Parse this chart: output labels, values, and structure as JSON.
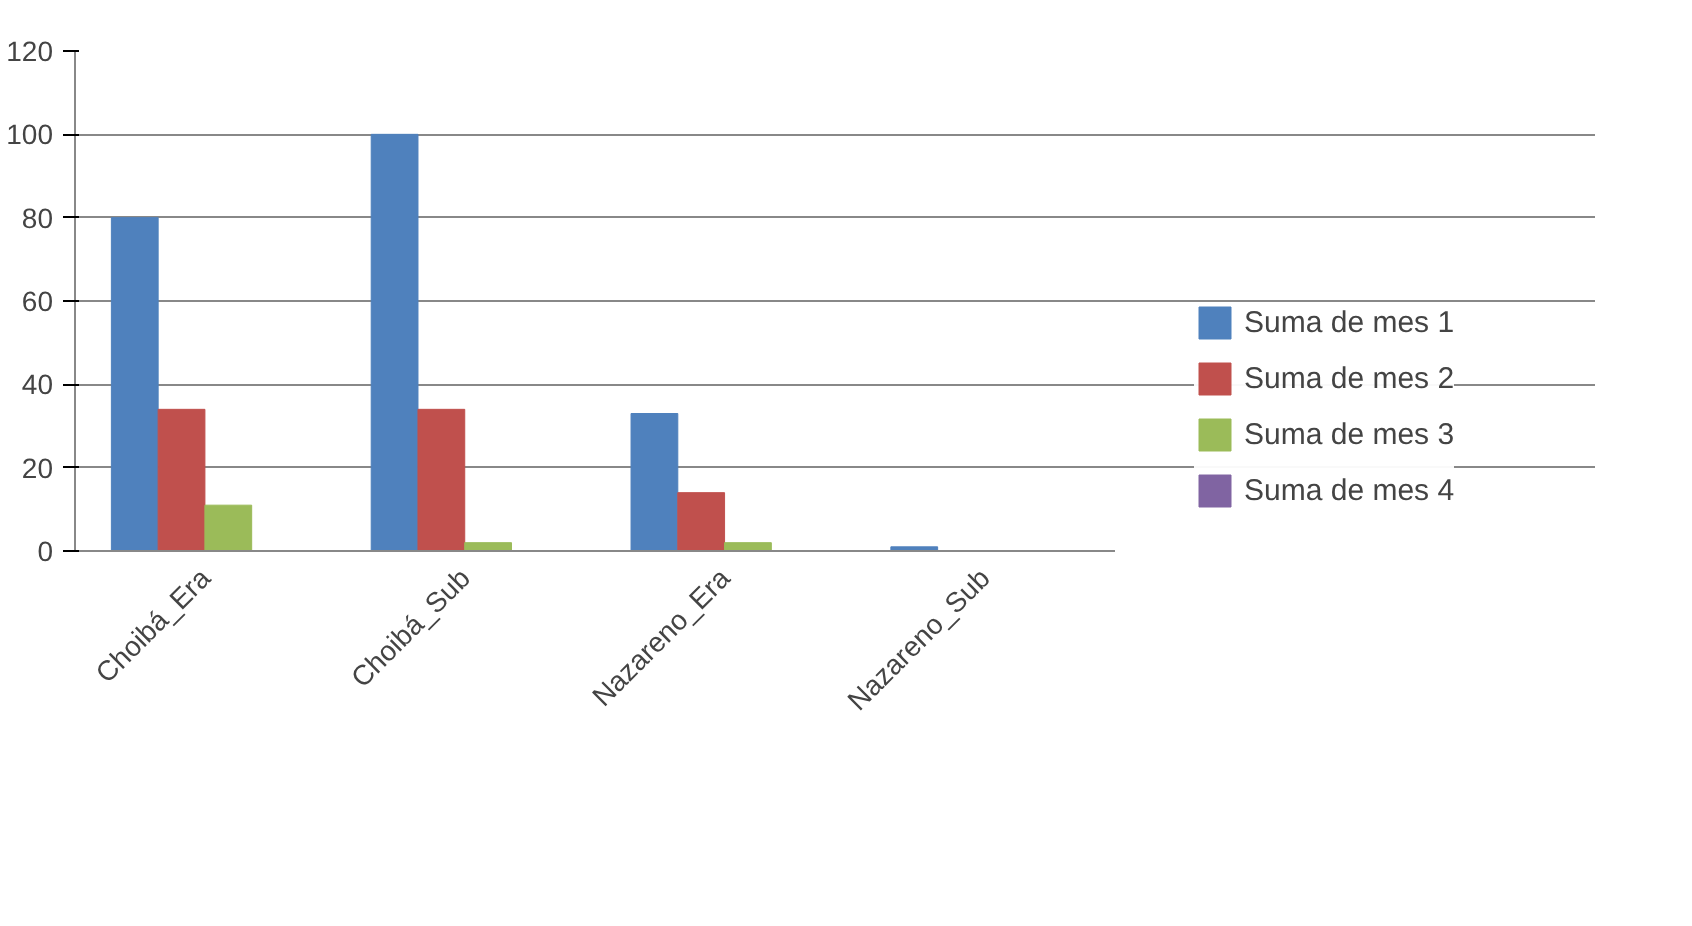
{
  "chart_data": {
    "type": "bar",
    "categories": [
      "Choibá_Era",
      "Choibá_Sub",
      "Nazareno_Era",
      "Nazareno_Sub"
    ],
    "series": [
      {
        "name": "Suma de mes 1",
        "color": "#4f81bd",
        "values": [
          80,
          100,
          33,
          1
        ]
      },
      {
        "name": "Suma de mes 2",
        "color": "#c0504d",
        "values": [
          34,
          34,
          14,
          0
        ]
      },
      {
        "name": "Suma de mes 3",
        "color": "#9bbb59",
        "values": [
          11,
          2,
          2,
          0
        ]
      },
      {
        "name": "Suma de mes 4",
        "color": "#8064a2",
        "values": [
          0,
          0,
          0,
          0
        ]
      }
    ],
    "ylim": [
      0,
      120
    ],
    "yticks": [
      0,
      20,
      40,
      60,
      80,
      100,
      120
    ],
    "grid": "y",
    "legend": "right"
  }
}
